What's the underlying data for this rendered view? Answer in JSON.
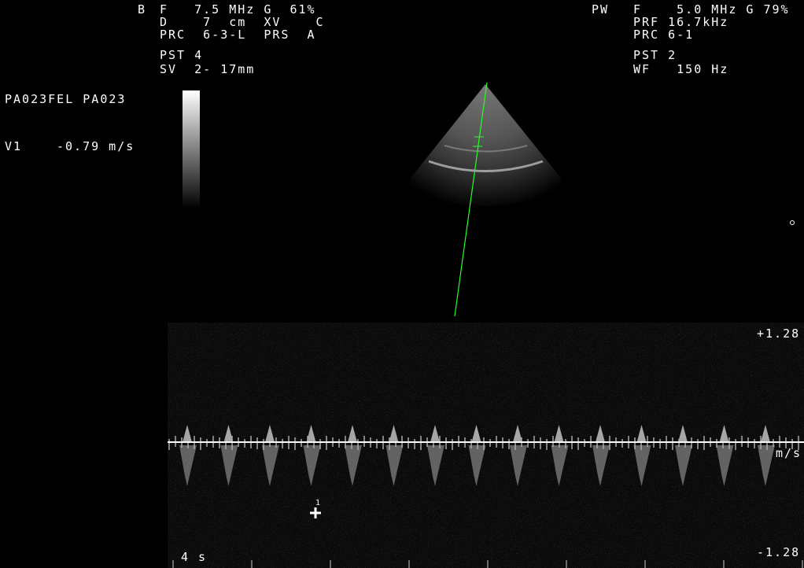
{
  "left_header": {
    "mode": "B",
    "lines": [
      "F   7.5 MHz G  61%",
      "D    7  cm  XV    C",
      "PRC  6-3-L  PRS  A",
      "PST 4",
      "SV  2- 17mm"
    ]
  },
  "right_header": {
    "mode": "PW",
    "lines": [
      "F    5.0 MHz G 79%",
      "PRF 16.7kHz",
      "PRC 6-1",
      "PST 2",
      "WF   150 Hz"
    ]
  },
  "patient_id": "PA023FEL PA023",
  "measurement": {
    "label": "V1",
    "value": "-0.79 m/s"
  },
  "doppler_scale": {
    "top": "+1.28",
    "unit": "m/s",
    "bottom": "-1.28"
  },
  "sweep_time": "4 s",
  "marker_label": "1"
}
